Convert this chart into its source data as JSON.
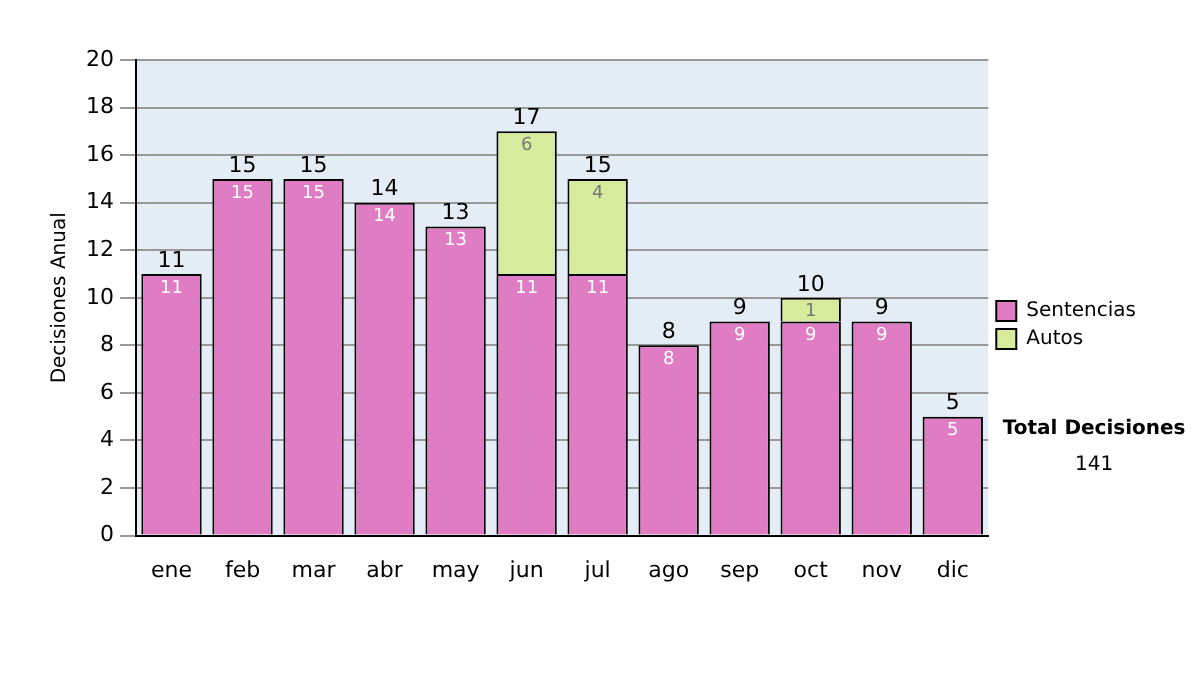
{
  "chart_data": {
    "type": "bar",
    "stacked": true,
    "ylabel": "Decisiones Anual",
    "categories": [
      "ene",
      "feb",
      "mar",
      "abr",
      "may",
      "jun",
      "jul",
      "ago",
      "sep",
      "oct",
      "nov",
      "dic"
    ],
    "series": [
      {
        "name": "Sentencias",
        "color": "#e07cc4",
        "values": [
          11,
          15,
          15,
          14,
          13,
          11,
          11,
          8,
          9,
          9,
          9,
          5
        ],
        "value_labels": [
          "11",
          "15",
          "15",
          "14",
          "13",
          "11",
          "11",
          "8",
          "9",
          "9",
          "9",
          "5"
        ]
      },
      {
        "name": "Autos",
        "color": "#d6eb9c",
        "values": [
          null,
          null,
          null,
          null,
          null,
          6,
          4,
          null,
          null,
          1,
          null,
          null
        ],
        "value_labels": [
          null,
          null,
          null,
          null,
          null,
          "6",
          "4",
          null,
          null,
          "1",
          null,
          null
        ]
      }
    ],
    "totals": [
      "11",
      "15",
      "15",
      "14",
      "13",
      "17",
      "15",
      "8",
      "9",
      "10",
      "9",
      "5"
    ],
    "ylim": [
      0,
      20
    ],
    "yticks": [
      0,
      2,
      4,
      6,
      8,
      10,
      12,
      14,
      16,
      18,
      20
    ],
    "grid": "y",
    "legend": "right",
    "annotations": [
      "Total Decisiones",
      "141"
    ]
  }
}
